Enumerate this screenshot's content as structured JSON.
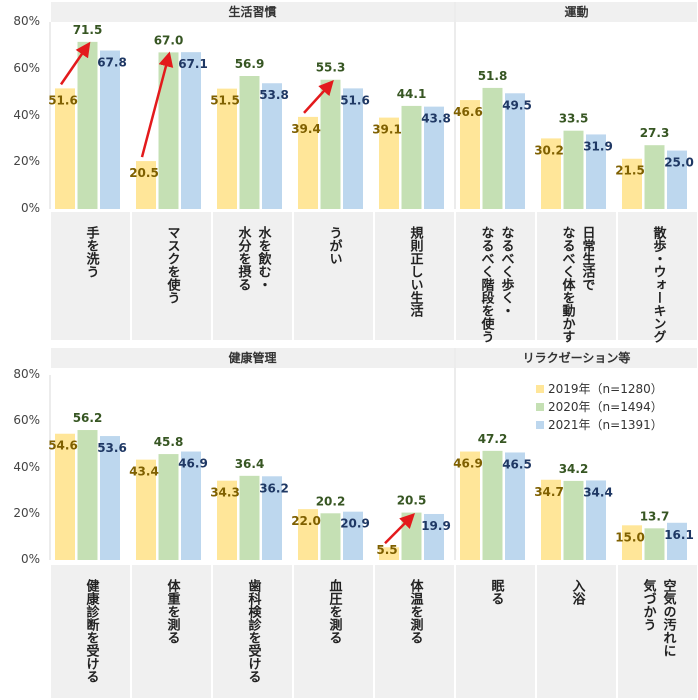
{
  "chart_data": [
    {
      "type": "bar",
      "ylim": [
        0,
        80
      ],
      "yticks": [
        "0%",
        "20%",
        "40%",
        "60%",
        "80%"
      ],
      "grid": false,
      "sections": [
        {
          "title": "生活習慣",
          "count": 5
        },
        {
          "title": "運動",
          "count": 3
        }
      ],
      "categories": [
        "手を洗う",
        "マスクを使う",
        "水を飲む・\n水分を摂る",
        "うがい",
        "規則正しい生活",
        "なるべく歩く・\nなるべく階段を使う",
        "日常生活で\nなるべく体を動かす",
        "散歩・ウォーキング"
      ],
      "series": [
        {
          "name": "2019年（n=1280）",
          "color": "#FFE699",
          "label_color": "#7F6000",
          "values": [
            51.6,
            20.5,
            51.5,
            39.4,
            39.1,
            46.6,
            30.2,
            21.5
          ]
        },
        {
          "name": "2020年（n=1494）",
          "color": "#C5E0B4",
          "label_color": "#375623",
          "values": [
            71.5,
            67.0,
            56.9,
            55.3,
            44.1,
            51.8,
            33.5,
            27.3
          ]
        },
        {
          "name": "2021年（n=1391）",
          "color": "#BDD7EE",
          "label_color": "#1F3864",
          "values": [
            67.8,
            67.1,
            53.8,
            51.6,
            43.8,
            49.5,
            31.9,
            25.0
          ]
        }
      ],
      "arrows_2019_to_2020": [
        "手を洗う",
        "マスクを使う",
        "うがい"
      ]
    },
    {
      "type": "bar",
      "ylim": [
        0,
        80
      ],
      "yticks": [
        "0%",
        "20%",
        "40%",
        "60%",
        "80%"
      ],
      "grid": false,
      "legend": "top-right",
      "sections": [
        {
          "title": "健康管理",
          "count": 5
        },
        {
          "title": "リラクゼーション等",
          "count": 3
        }
      ],
      "categories": [
        "健康診断を受ける",
        "体重を測る",
        "歯科検診を受ける",
        "血圧を測る",
        "体温を測る",
        "眠る",
        "入浴",
        "空気の汚れに\n気づかう"
      ],
      "series": [
        {
          "name": "2019年（n=1280）",
          "color": "#FFE699",
          "label_color": "#7F6000",
          "values": [
            54.6,
            43.4,
            34.3,
            22.0,
            5.5,
            46.9,
            34.7,
            15.0
          ]
        },
        {
          "name": "2020年（n=1494）",
          "color": "#C5E0B4",
          "label_color": "#375623",
          "values": [
            56.2,
            45.8,
            36.4,
            20.2,
            20.5,
            47.2,
            34.2,
            13.7
          ]
        },
        {
          "name": "2021年（n=1391）",
          "color": "#BDD7EE",
          "label_color": "#1F3864",
          "values": [
            53.6,
            46.9,
            36.2,
            20.9,
            19.9,
            46.5,
            34.4,
            16.1
          ]
        }
      ],
      "arrows_2019_to_2020": [
        "体温を測る"
      ]
    }
  ],
  "arrow_color": "#E31A1C"
}
